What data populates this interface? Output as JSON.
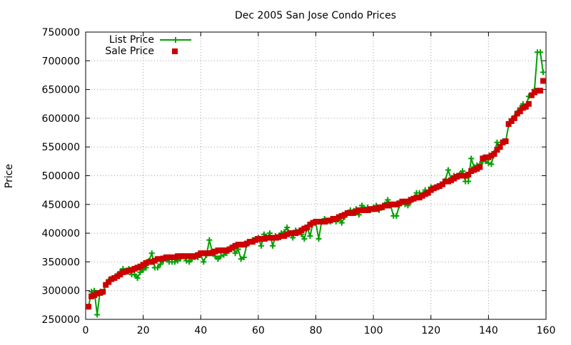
{
  "chart_data": {
    "type": "line",
    "title": "Dec 2005 San Jose Condo Prices",
    "xlabel": "",
    "ylabel": "Price",
    "xlim": [
      0,
      160
    ],
    "ylim": [
      250000,
      750000
    ],
    "xticks": [
      0,
      20,
      40,
      60,
      80,
      100,
      120,
      140,
      160
    ],
    "xtick_labels": [
      "0",
      "20",
      "40",
      "60",
      "80",
      "100",
      "120",
      "140",
      "160"
    ],
    "yticks": [
      250000,
      300000,
      350000,
      400000,
      450000,
      500000,
      550000,
      600000,
      650000,
      700000,
      750000
    ],
    "ytick_labels": [
      "250000",
      "300000",
      "350000",
      "400000",
      "450000",
      "500000",
      "550000",
      "600000",
      "650000",
      "700000",
      "750000"
    ],
    "grid": true,
    "legend_position": "top-left",
    "colors": {
      "list": "#00a000",
      "sale": "#cc0000"
    },
    "series": [
      {
        "name": "List Price",
        "style": "line-plus",
        "x": [
          1,
          2,
          3,
          4,
          5,
          6,
          7,
          8,
          9,
          10,
          11,
          12,
          13,
          14,
          15,
          16,
          17,
          18,
          19,
          20,
          21,
          22,
          23,
          24,
          25,
          26,
          27,
          28,
          29,
          30,
          31,
          32,
          33,
          34,
          35,
          36,
          37,
          38,
          39,
          40,
          41,
          42,
          43,
          44,
          45,
          46,
          47,
          48,
          49,
          50,
          51,
          52,
          53,
          54,
          55,
          56,
          57,
          58,
          59,
          60,
          61,
          62,
          63,
          64,
          65,
          66,
          67,
          68,
          69,
          70,
          71,
          72,
          73,
          74,
          75,
          76,
          77,
          78,
          79,
          80,
          81,
          82,
          83,
          84,
          85,
          86,
          87,
          88,
          89,
          90,
          91,
          92,
          93,
          94,
          95,
          96,
          97,
          98,
          99,
          100,
          101,
          102,
          103,
          104,
          105,
          106,
          107,
          108,
          109,
          110,
          111,
          112,
          113,
          114,
          115,
          116,
          117,
          118,
          119,
          120,
          121,
          122,
          123,
          124,
          125,
          126,
          127,
          128,
          129,
          130,
          131,
          132,
          133,
          134,
          135,
          136,
          137,
          138,
          139,
          140,
          141,
          142,
          143,
          144,
          145,
          146,
          147,
          148,
          149,
          150,
          151,
          152,
          153,
          154,
          155,
          156,
          157,
          158,
          159
        ],
        "values": [
          272000,
          298000,
          300000,
          258000,
          298000,
          297000,
          310000,
          318000,
          320000,
          322000,
          327000,
          333000,
          338000,
          335000,
          338000,
          328000,
          328000,
          322000,
          332000,
          336000,
          340000,
          352000,
          365000,
          340000,
          340000,
          346000,
          352000,
          355000,
          350000,
          350000,
          350000,
          352000,
          356000,
          360000,
          352000,
          350000,
          355000,
          358000,
          358000,
          362000,
          350000,
          362000,
          388000,
          368000,
          360000,
          355000,
          360000,
          362000,
          365000,
          372000,
          375000,
          365000,
          372000,
          355000,
          358000,
          380000,
          385000,
          388000,
          390000,
          392000,
          378000,
          398000,
          390000,
          400000,
          378000,
          395000,
          392000,
          400000,
          402000,
          410000,
          400000,
          392000,
          405000,
          402000,
          398000,
          390000,
          410000,
          395000,
          418000,
          418000,
          390000,
          420000,
          425000,
          420000,
          420000,
          425000,
          420000,
          425000,
          418000,
          428000,
          435000,
          440000,
          438000,
          442000,
          432000,
          448000,
          442000,
          445000,
          440000,
          445000,
          448000,
          440000,
          445000,
          450000,
          458000,
          448000,
          430000,
          430000,
          448000,
          455000,
          450000,
          448000,
          455000,
          460000,
          470000,
          470000,
          465000,
          475000,
          470000,
          480000,
          478000,
          480000,
          482000,
          485000,
          492000,
          510000,
          495000,
          500000,
          500000,
          502000,
          508000,
          490000,
          490000,
          530000,
          515000,
          518000,
          520000,
          525000,
          525000,
          522000,
          520000,
          540000,
          558000,
          550000,
          560000,
          560000,
          588000,
          598000,
          602000,
          610000,
          618000,
          625000,
          620000,
          638000,
          640000,
          650000,
          715000,
          715000,
          680000
        ]
      },
      {
        "name": "Sale Price",
        "style": "square-points",
        "x": [
          1,
          2,
          3,
          4,
          5,
          6,
          7,
          8,
          9,
          10,
          11,
          12,
          13,
          14,
          15,
          16,
          17,
          18,
          19,
          20,
          21,
          22,
          23,
          24,
          25,
          26,
          27,
          28,
          29,
          30,
          31,
          32,
          33,
          34,
          35,
          36,
          37,
          38,
          39,
          40,
          41,
          42,
          43,
          44,
          45,
          46,
          47,
          48,
          49,
          50,
          51,
          52,
          53,
          54,
          55,
          56,
          57,
          58,
          59,
          60,
          61,
          62,
          63,
          64,
          65,
          66,
          67,
          68,
          69,
          70,
          71,
          72,
          73,
          74,
          75,
          76,
          77,
          78,
          79,
          80,
          81,
          82,
          83,
          84,
          85,
          86,
          87,
          88,
          89,
          90,
          91,
          92,
          93,
          94,
          95,
          96,
          97,
          98,
          99,
          100,
          101,
          102,
          103,
          104,
          105,
          106,
          107,
          108,
          109,
          110,
          111,
          112,
          113,
          114,
          115,
          116,
          117,
          118,
          119,
          120,
          121,
          122,
          123,
          124,
          125,
          126,
          127,
          128,
          129,
          130,
          131,
          132,
          133,
          134,
          135,
          136,
          137,
          138,
          139,
          140,
          141,
          142,
          143,
          144,
          145,
          146,
          147,
          148,
          149,
          150,
          151,
          152,
          153,
          154,
          155,
          156,
          157,
          158,
          159
        ],
        "values": [
          272000,
          290000,
          292000,
          295000,
          296000,
          298000,
          310000,
          315000,
          320000,
          322000,
          325000,
          328000,
          332000,
          333000,
          335000,
          336000,
          338000,
          340000,
          342000,
          345000,
          348000,
          350000,
          350000,
          352000,
          355000,
          355000,
          356000,
          358000,
          358000,
          358000,
          358000,
          360000,
          360000,
          360000,
          360000,
          360000,
          360000,
          360000,
          362000,
          365000,
          365000,
          365000,
          365000,
          366000,
          368000,
          370000,
          370000,
          370000,
          370000,
          372000,
          375000,
          378000,
          380000,
          380000,
          380000,
          382000,
          385000,
          385000,
          388000,
          390000,
          390000,
          390000,
          392000,
          392000,
          392000,
          392000,
          393000,
          395000,
          395000,
          398000,
          400000,
          400000,
          400000,
          402000,
          405000,
          408000,
          410000,
          415000,
          418000,
          420000,
          420000,
          420000,
          420000,
          422000,
          422000,
          425000,
          425000,
          428000,
          430000,
          432000,
          435000,
          435000,
          435000,
          438000,
          440000,
          440000,
          440000,
          440000,
          442000,
          442000,
          442000,
          445000,
          445000,
          448000,
          448000,
          450000,
          450000,
          450000,
          452000,
          455000,
          455000,
          455000,
          458000,
          460000,
          462000,
          462000,
          465000,
          468000,
          470000,
          475000,
          478000,
          480000,
          482000,
          485000,
          490000,
          490000,
          492000,
          495000,
          498000,
          500000,
          500000,
          500000,
          502000,
          508000,
          510000,
          512000,
          515000,
          530000,
          532000,
          532000,
          535000,
          538000,
          545000,
          550000,
          558000,
          560000,
          590000,
          595000,
          600000,
          608000,
          612000,
          618000,
          620000,
          625000,
          640000,
          645000,
          648000,
          648000,
          665000
        ]
      }
    ]
  }
}
